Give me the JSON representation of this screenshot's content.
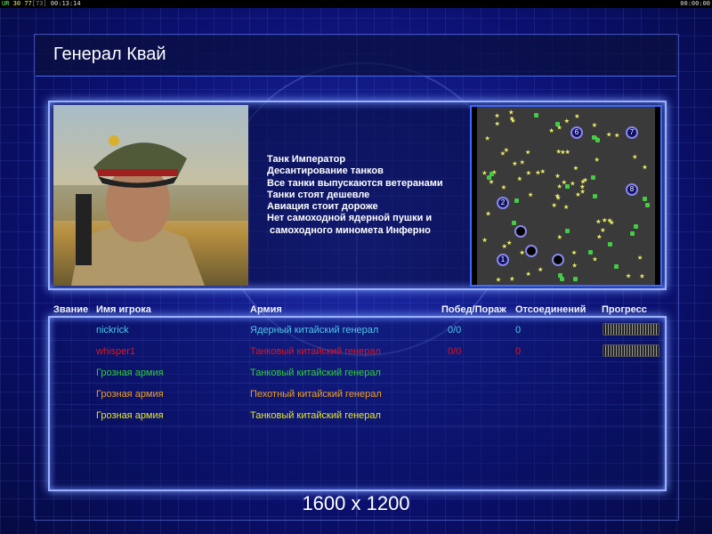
{
  "status_bar": {
    "left_a": "UR",
    "left_b": "30",
    "left_c": "77",
    "left_d": "[73]",
    "left_e": "00:13:14",
    "right": "00:00:00"
  },
  "title": "Генерал Квай",
  "features": [
    "Танк Император",
    "Десантирование танков",
    "Все танки выпускаются ветеранами",
    "Танки стоят дешевле",
    "Авиация стоит дороже",
    "Нет самоходной ядерной пушки и",
    " самоходного миномета Инферно"
  ],
  "map": {
    "start_positions": [
      "1",
      "2",
      "6",
      "7",
      "8"
    ]
  },
  "table": {
    "headers": [
      "Звание",
      "Имя игрока",
      "Армия",
      "Побед/Пораж",
      "Отсоединений",
      "Прогресс"
    ],
    "rows": [
      {
        "name": "nickrick",
        "army": "Ядерный китайский генерал",
        "wl": "0/0",
        "disc": "0",
        "color": "#4fc8e8",
        "progress": true
      },
      {
        "name": "whisper1",
        "army": "Танковый китайский генерал",
        "wl": "0/0",
        "disc": "0",
        "color": "#f01010",
        "progress": true
      },
      {
        "name": "Грозная армия",
        "army": "Танковый китайский генерал",
        "wl": "",
        "disc": "",
        "color": "#30d030",
        "progress": false
      },
      {
        "name": "Грозная армия",
        "army": "Пехотный китайский генерал",
        "wl": "",
        "disc": "",
        "color": "#f0a020",
        "progress": false
      },
      {
        "name": "Грозная армия",
        "army": "Танковый китайский генерал",
        "wl": "",
        "disc": "",
        "color": "#e8e820",
        "progress": false
      }
    ]
  },
  "resolution": "1600 x 1200"
}
